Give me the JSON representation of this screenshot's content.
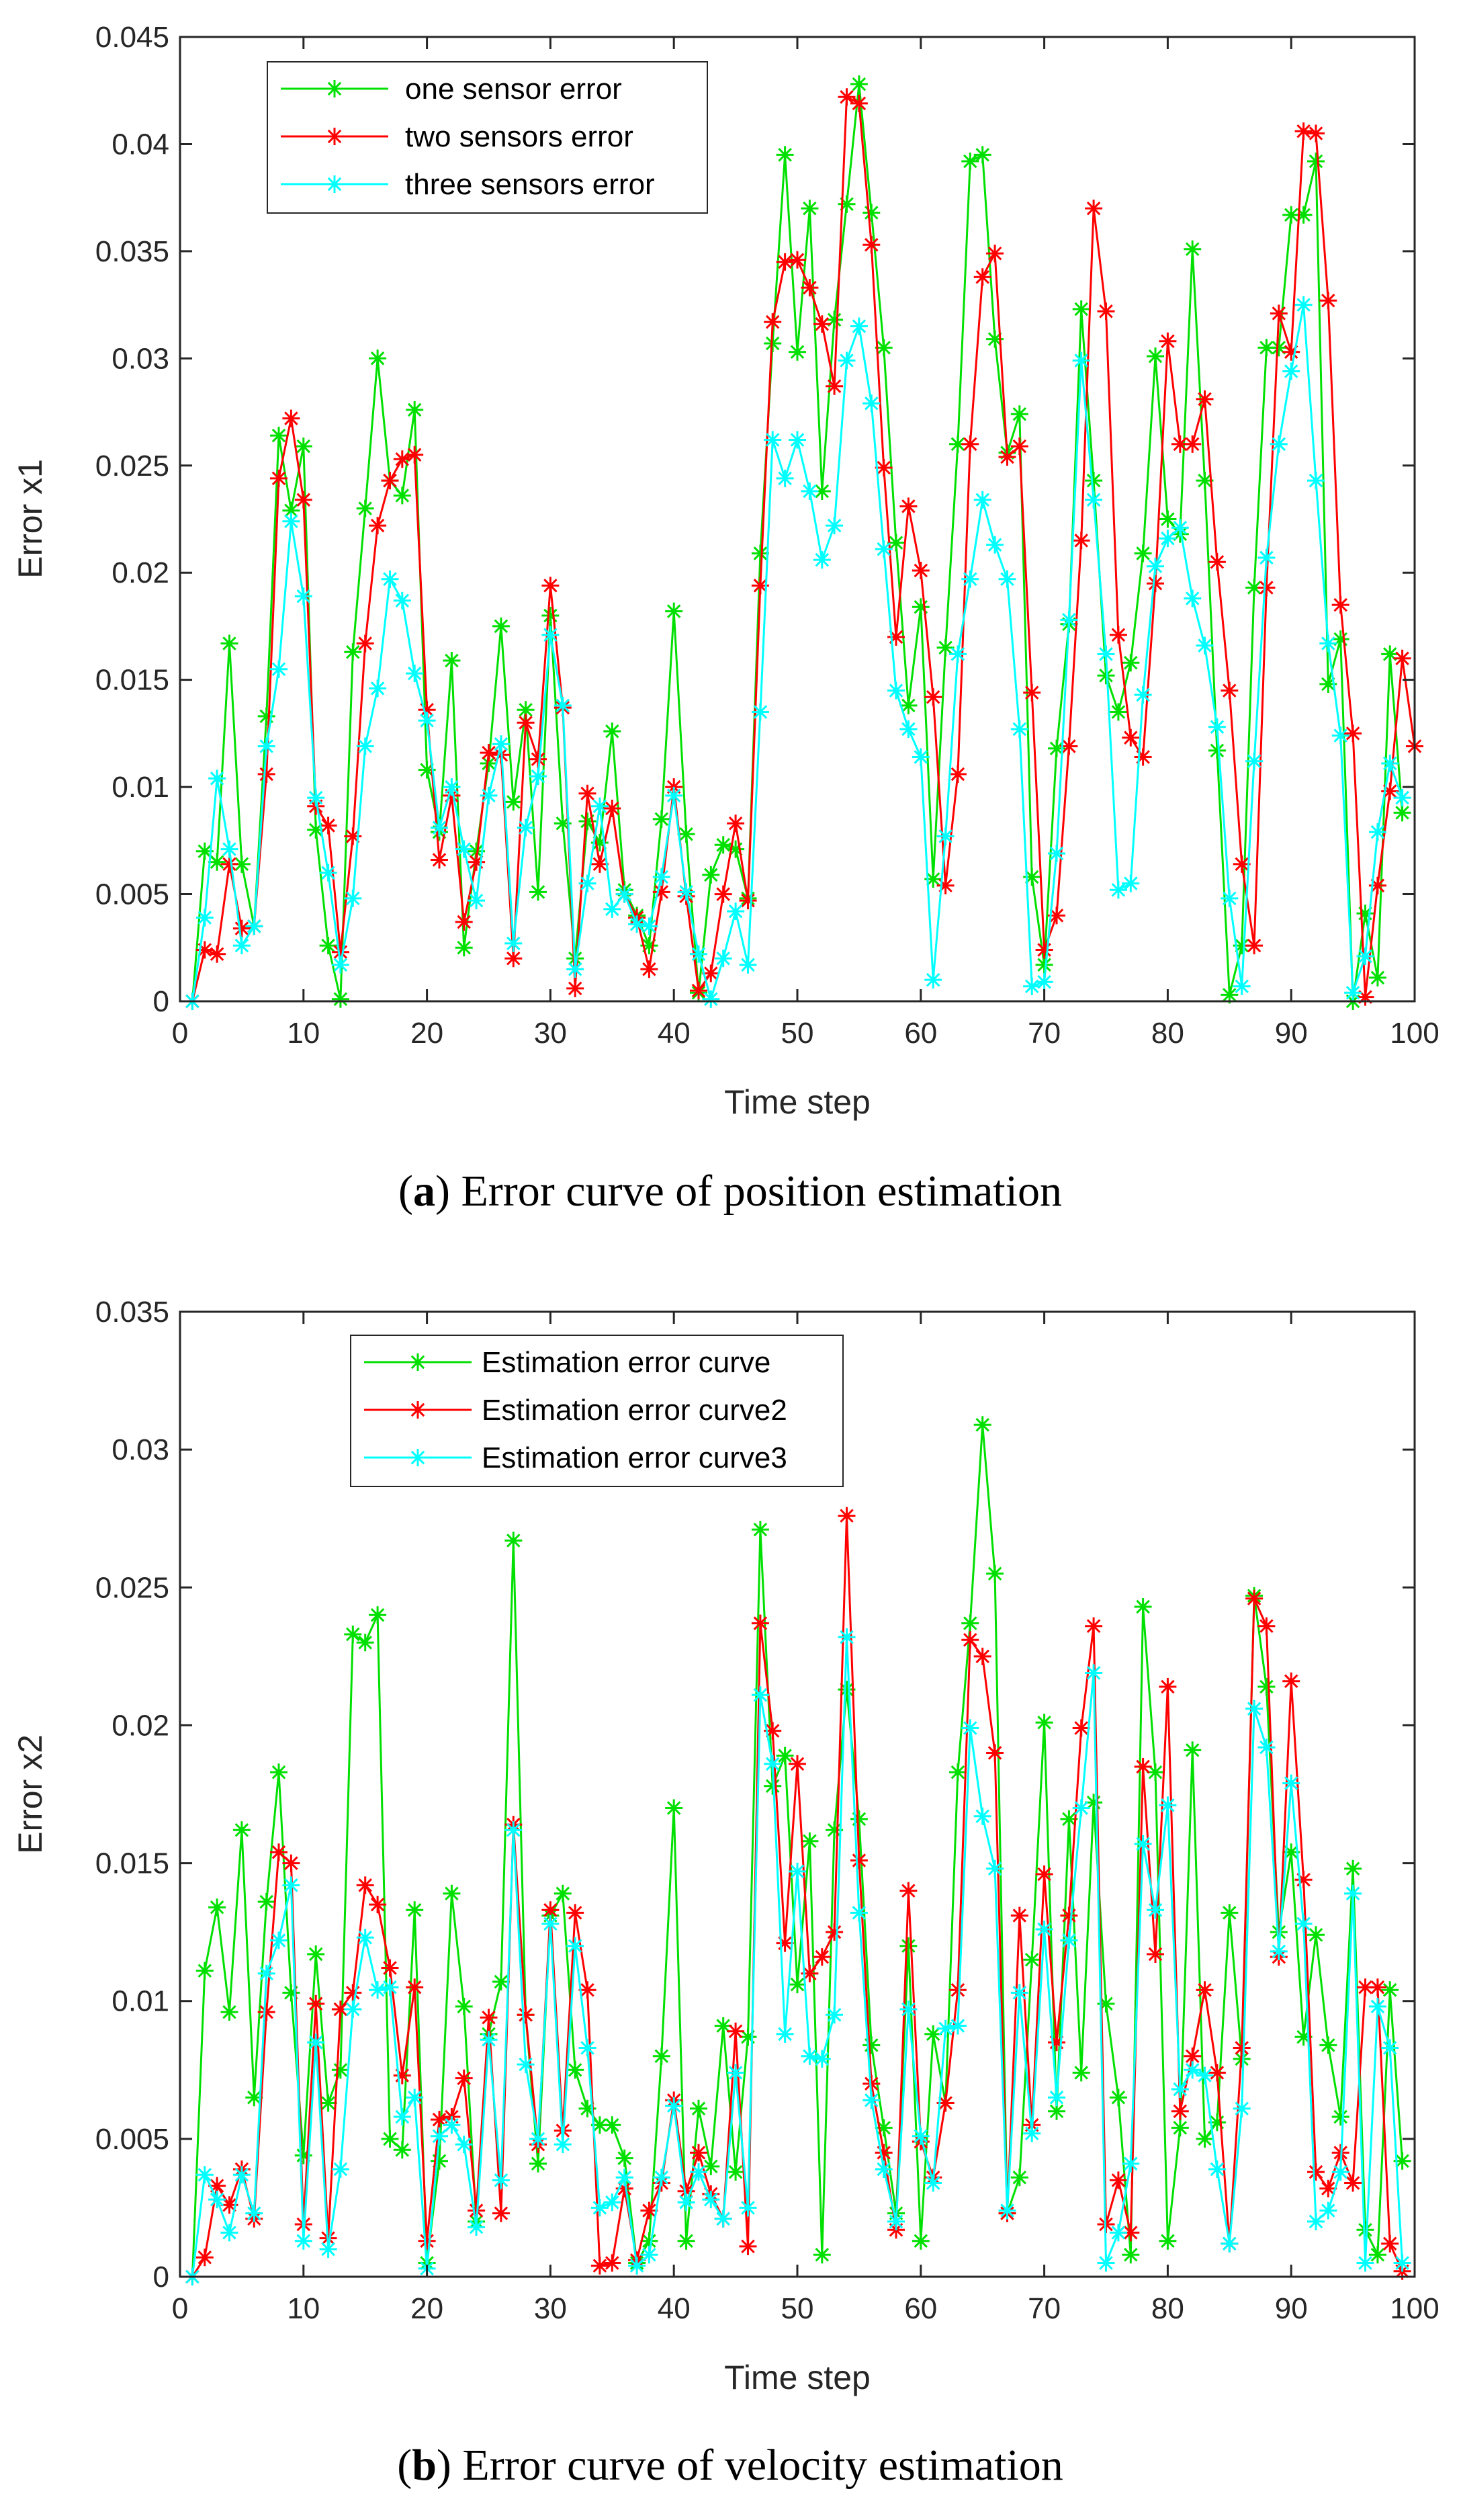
{
  "chart_data": [
    {
      "type": "line",
      "caption_label": "a",
      "caption_text": ") Error curve of position estimation",
      "xlabel": "Time step",
      "ylabel": "Error x1",
      "xlim": [
        0,
        100
      ],
      "ylim": [
        0,
        0.045
      ],
      "xticks": [
        0,
        10,
        20,
        30,
        40,
        50,
        60,
        70,
        80,
        90,
        100
      ],
      "yticks": [
        0,
        0.005,
        0.01,
        0.015,
        0.02,
        0.025,
        0.03,
        0.035,
        0.04,
        0.045
      ],
      "ytick_labels": [
        "0",
        "0.005",
        "0.01",
        "0.015",
        "0.02",
        "0.025",
        "0.03",
        "0.035",
        "0.04",
        "0.045"
      ],
      "grid": false,
      "legend_position": "top-left",
      "series": [
        {
          "name": "one sensor error",
          "color": "#00e000",
          "values": [
            0.0,
            0.007,
            0.0065,
            0.0167,
            0.0064,
            0.0035,
            0.0133,
            0.0264,
            0.0229,
            0.0259,
            0.008,
            0.0026,
            0.0001,
            0.0163,
            0.023,
            0.03,
            0.0243,
            0.0236,
            0.0276,
            0.0108,
            0.0079,
            0.0159,
            0.0025,
            0.007,
            0.0111,
            0.0175,
            0.0093,
            0.0136,
            0.0051,
            0.018,
            0.0083,
            0.002,
            0.0084,
            0.0074,
            0.0126,
            0.0052,
            0.004,
            0.0026,
            0.0085,
            0.0182,
            0.0078,
            0.0004,
            0.0059,
            0.0073,
            0.0071,
            0.0048,
            0.0209,
            0.0307,
            0.0395,
            0.0303,
            0.037,
            0.0238,
            0.0318,
            0.0372,
            0.0428,
            0.0368,
            0.0305,
            0.0214,
            0.0138,
            0.0184,
            0.0057,
            0.0165,
            0.026,
            0.0392,
            0.0395,
            0.0309,
            0.0256,
            0.0274,
            0.0058,
            0.0017,
            0.0118,
            0.0176,
            0.0323,
            0.0243,
            0.0152,
            0.0135,
            0.0158,
            0.0209,
            0.0301,
            0.0225,
            0.0218,
            0.0351,
            0.0243,
            0.0117,
            0.0003,
            0.0026,
            0.0193,
            0.0305,
            0.0305,
            0.0367,
            0.0367,
            0.0392,
            0.0148,
            0.0169,
            0.0,
            0.0041,
            0.0011,
            0.0162,
            0.0088
          ]
        },
        {
          "name": "two sensors error",
          "color": "#ff0000",
          "values": [
            0.0,
            0.0024,
            0.0022,
            0.0064,
            0.0034,
            0.0035,
            0.0106,
            0.0244,
            0.0272,
            0.0234,
            0.0091,
            0.0082,
            0.0023,
            0.0077,
            0.0167,
            0.0222,
            0.0243,
            0.0253,
            0.0255,
            0.0136,
            0.0066,
            0.0096,
            0.0037,
            0.0065,
            0.0116,
            0.0115,
            0.002,
            0.013,
            0.0113,
            0.0194,
            0.0137,
            0.0006,
            0.0097,
            0.0064,
            0.009,
            0.005,
            0.0039,
            0.0015,
            0.0051,
            0.01,
            0.0049,
            0.0005,
            0.0013,
            0.005,
            0.0083,
            0.0047,
            0.0194,
            0.0317,
            0.0345,
            0.0346,
            0.0333,
            0.0316,
            0.0287,
            0.0422,
            0.0419,
            0.0353,
            0.0249,
            0.017,
            0.0231,
            0.0201,
            0.0142,
            0.0054,
            0.0106,
            0.026,
            0.0338,
            0.0349,
            0.0254,
            0.0259,
            0.0144,
            0.0024,
            0.004,
            0.0119,
            0.0215,
            0.037,
            0.0322,
            0.0171,
            0.0123,
            0.0114,
            0.0195,
            0.0308,
            0.026,
            0.026,
            0.0281,
            0.0205,
            0.0145,
            0.0064,
            0.0026,
            0.0193,
            0.0321,
            0.0303,
            0.0406,
            0.0405,
            0.0327,
            0.0185,
            0.0125,
            0.0002,
            0.0054,
            0.0098,
            0.016,
            0.0119
          ]
        },
        {
          "name": "three sensors error",
          "color": "#00ffff",
          "values": [
            0.0,
            0.0039,
            0.0104,
            0.0071,
            0.0026,
            0.0035,
            0.0119,
            0.0155,
            0.0224,
            0.0189,
            0.0095,
            0.006,
            0.0017,
            0.0048,
            0.0119,
            0.0146,
            0.0197,
            0.0187,
            0.0153,
            0.0131,
            0.0081,
            0.01,
            0.0071,
            0.0047,
            0.0096,
            0.012,
            0.0027,
            0.0081,
            0.0105,
            0.0171,
            0.0138,
            0.0015,
            0.0055,
            0.0091,
            0.0043,
            0.005,
            0.0036,
            0.0035,
            0.0058,
            0.0096,
            0.0051,
            0.0022,
            0.0001,
            0.002,
            0.0042,
            0.0017,
            0.0135,
            0.0262,
            0.0244,
            0.0262,
            0.0238,
            0.0206,
            0.0222,
            0.0299,
            0.0315,
            0.0279,
            0.0211,
            0.0145,
            0.0127,
            0.0114,
            0.001,
            0.0077,
            0.0162,
            0.0197,
            0.0234,
            0.0213,
            0.0197,
            0.0127,
            0.0007,
            0.0009,
            0.0069,
            0.0178,
            0.0299,
            0.0234,
            0.0162,
            0.0052,
            0.0055,
            0.0143,
            0.0203,
            0.0216,
            0.0221,
            0.0188,
            0.0166,
            0.0128,
            0.0048,
            0.0007,
            0.0112,
            0.0207,
            0.026,
            0.0294,
            0.0325,
            0.0243,
            0.0167,
            0.0124,
            0.0004,
            0.0021,
            0.0079,
            0.0111,
            0.0095
          ]
        }
      ]
    },
    {
      "type": "line",
      "caption_label": "b",
      "caption_text": ") Error curve of velocity estimation",
      "xlabel": "Time step",
      "ylabel": "Error x2",
      "xlim": [
        0,
        100
      ],
      "ylim": [
        0,
        0.035
      ],
      "xticks": [
        0,
        10,
        20,
        30,
        40,
        50,
        60,
        70,
        80,
        90,
        100
      ],
      "yticks": [
        0,
        0.005,
        0.01,
        0.015,
        0.02,
        0.025,
        0.03,
        0.035
      ],
      "ytick_labels": [
        "0",
        "0.005",
        "0.01",
        "0.015",
        "0.02",
        "0.025",
        "0.03",
        "0.035"
      ],
      "grid": false,
      "legend_position": "top-left",
      "series": [
        {
          "name": "Estimation error curve",
          "color": "#00e000",
          "values": [
            0.0,
            0.0111,
            0.0134,
            0.0096,
            0.0162,
            0.0065,
            0.0136,
            0.0183,
            0.0103,
            0.0044,
            0.0117,
            0.0063,
            0.0075,
            0.0233,
            0.023,
            0.024,
            0.005,
            0.0046,
            0.0133,
            0.0005,
            0.0042,
            0.0139,
            0.0098,
            0.002,
            0.0088,
            0.0107,
            0.0267,
            0.0095,
            0.0041,
            0.0131,
            0.0139,
            0.0075,
            0.0061,
            0.0055,
            0.0055,
            0.0043,
            0.0005,
            0.0013,
            0.008,
            0.017,
            0.0013,
            0.0061,
            0.004,
            0.0091,
            0.0038,
            0.0087,
            0.0271,
            0.0178,
            0.0189,
            0.0106,
            0.0158,
            0.0008,
            0.0162,
            0.0213,
            0.0166,
            0.0084,
            0.0054,
            0.0023,
            0.012,
            0.0013,
            0.0088,
            0.0063,
            0.0183,
            0.0237,
            0.0309,
            0.0255,
            0.0023,
            0.0036,
            0.0115,
            0.0201,
            0.006,
            0.0166,
            0.0074,
            0.0172,
            0.0099,
            0.0065,
            0.0008,
            0.0243,
            0.0183,
            0.0013,
            0.0054,
            0.0191,
            0.005,
            0.0056,
            0.0132,
            0.0079,
            0.0247,
            0.0214,
            0.0125,
            0.0154,
            0.0087,
            0.0124,
            0.0084,
            0.0058,
            0.0148,
            0.0017,
            0.0008,
            0.0104,
            0.0042
          ]
        },
        {
          "name": "Estimation error curve2",
          "color": "#ff0000",
          "values": [
            0.0,
            0.0007,
            0.0033,
            0.0026,
            0.0039,
            0.0021,
            0.0096,
            0.0154,
            0.015,
            0.0019,
            0.0099,
            0.0014,
            0.0097,
            0.0103,
            0.0142,
            0.0135,
            0.0112,
            0.0073,
            0.0105,
            0.0013,
            0.0057,
            0.0058,
            0.0072,
            0.0024,
            0.0094,
            0.0023,
            0.0164,
            0.0095,
            0.0048,
            0.0133,
            0.0053,
            0.0132,
            0.0104,
            0.0004,
            0.0005,
            0.0032,
            0.0006,
            0.0024,
            0.0034,
            0.0064,
            0.0031,
            0.0045,
            0.003,
            0.0021,
            0.0089,
            0.0011,
            0.0237,
            0.0198,
            0.0121,
            0.0186,
            0.011,
            0.0116,
            0.0125,
            0.0276,
            0.0151,
            0.007,
            0.0045,
            0.0017,
            0.014,
            0.0049,
            0.0036,
            0.0063,
            0.0104,
            0.0231,
            0.0225,
            0.019,
            0.0023,
            0.0131,
            0.0055,
            0.0146,
            0.0085,
            0.0131,
            0.0199,
            0.0236,
            0.0019,
            0.0035,
            0.0016,
            0.0185,
            0.0117,
            0.0214,
            0.006,
            0.008,
            0.0104,
            0.0074,
            0.0012,
            0.0083,
            0.0246,
            0.0236,
            0.0116,
            0.0216,
            0.0144,
            0.0038,
            0.0032,
            0.0045,
            0.0034,
            0.0105,
            0.0105,
            0.0012,
            0.0002
          ]
        },
        {
          "name": "Estimation error curve3",
          "color": "#00ffff",
          "values": [
            0.0,
            0.0037,
            0.0028,
            0.0016,
            0.0037,
            0.0023,
            0.011,
            0.0122,
            0.0142,
            0.0013,
            0.0085,
            0.001,
            0.0039,
            0.0097,
            0.0123,
            0.0104,
            0.0105,
            0.0058,
            0.0065,
            0.0003,
            0.0051,
            0.0055,
            0.0048,
            0.0018,
            0.0086,
            0.0035,
            0.0162,
            0.0077,
            0.005,
            0.0128,
            0.0048,
            0.012,
            0.0083,
            0.0025,
            0.0027,
            0.0036,
            0.0004,
            0.0008,
            0.0036,
            0.0062,
            0.0027,
            0.0038,
            0.0028,
            0.0021,
            0.0074,
            0.0025,
            0.0211,
            0.0186,
            0.0088,
            0.0147,
            0.008,
            0.0079,
            0.0095,
            0.0232,
            0.0132,
            0.0064,
            0.0039,
            0.002,
            0.0097,
            0.0051,
            0.0034,
            0.009,
            0.0091,
            0.0199,
            0.0167,
            0.0148,
            0.0024,
            0.0103,
            0.0052,
            0.0126,
            0.0065,
            0.0122,
            0.017,
            0.0219,
            0.0005,
            0.0016,
            0.0041,
            0.0157,
            0.0133,
            0.0171,
            0.0068,
            0.0075,
            0.0073,
            0.0039,
            0.0012,
            0.0061,
            0.0206,
            0.0192,
            0.0118,
            0.0179,
            0.0128,
            0.002,
            0.0024,
            0.0038,
            0.0139,
            0.0005,
            0.0098,
            0.0083,
            0.0005
          ]
        }
      ]
    }
  ]
}
